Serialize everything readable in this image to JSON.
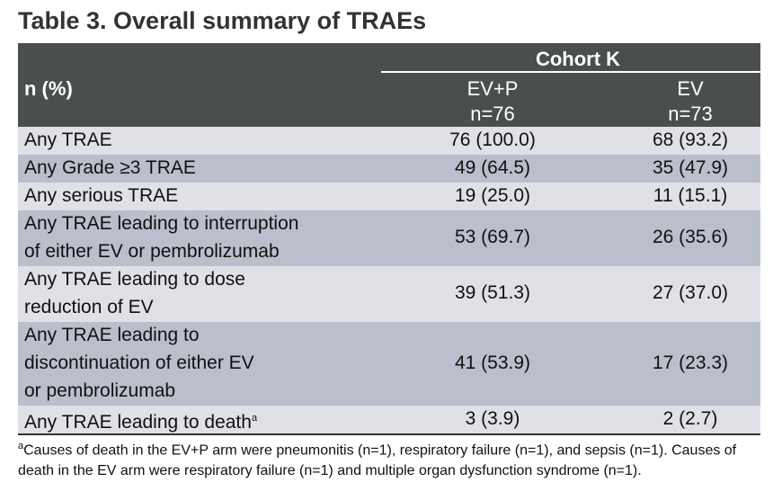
{
  "title": "Table 3. Overall summary of TRAEs",
  "header": {
    "row_label": "n (%)",
    "group": "Cohort K",
    "columns": [
      {
        "name": "EV+P",
        "n": "n=76"
      },
      {
        "name": "EV",
        "n": "n=73"
      }
    ]
  },
  "rows": [
    {
      "label": [
        "Any TRAE"
      ],
      "values": [
        "76 (100.0)",
        "68 (93.2)"
      ]
    },
    {
      "label": [
        "Any Grade ≥3 TRAE"
      ],
      "values": [
        "49 (64.5)",
        "35 (47.9)"
      ]
    },
    {
      "label": [
        "Any serious TRAE"
      ],
      "values": [
        "19 (25.0)",
        "11 (15.1)"
      ]
    },
    {
      "label": [
        "Any TRAE leading to interruption",
        "of either EV or pembrolizumab"
      ],
      "values": [
        "53 (69.7)",
        "26 (35.6)"
      ]
    },
    {
      "label": [
        "Any TRAE leading to dose",
        "reduction of EV"
      ],
      "values": [
        "39 (51.3)",
        "27 (37.0)"
      ]
    },
    {
      "label": [
        "Any TRAE leading to",
        "discontinuation of either EV",
        "or pembrolizumab"
      ],
      "values": [
        "41 (53.9)",
        "17 (23.3)"
      ]
    },
    {
      "label": [
        "Any TRAE leading to death"
      ],
      "note_mark": "a",
      "values": [
        "3 (3.9)",
        "2 (2.7)"
      ]
    }
  ],
  "footnote": {
    "mark": "a",
    "text": "Causes of death in the EV+P arm were pneumonitis (n=1), respiratory failure (n=1), and sepsis (n=1). Causes of death in the EV arm were respiratory failure (n=1) and multiple organ dysfunction syndrome (n=1)."
  }
}
